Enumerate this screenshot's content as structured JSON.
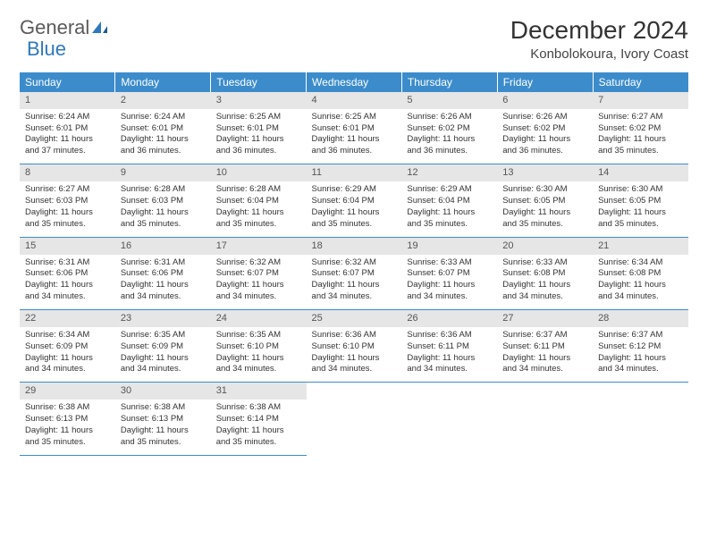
{
  "brand": {
    "part1": "General",
    "part2": "Blue"
  },
  "title": "December 2024",
  "location": "Konbolokoura, Ivory Coast",
  "colors": {
    "header_bg": "#3c8ccc",
    "header_text": "#ffffff",
    "daynum_bg": "#e6e6e6",
    "border": "#3c8ccc",
    "brand_gray": "#5a5a5a",
    "brand_blue": "#2f78bd"
  },
  "day_headers": [
    "Sunday",
    "Monday",
    "Tuesday",
    "Wednesday",
    "Thursday",
    "Friday",
    "Saturday"
  ],
  "weeks": [
    [
      {
        "n": "1",
        "sr": "Sunrise: 6:24 AM",
        "ss": "Sunset: 6:01 PM",
        "d1": "Daylight: 11 hours",
        "d2": "and 37 minutes."
      },
      {
        "n": "2",
        "sr": "Sunrise: 6:24 AM",
        "ss": "Sunset: 6:01 PM",
        "d1": "Daylight: 11 hours",
        "d2": "and 36 minutes."
      },
      {
        "n": "3",
        "sr": "Sunrise: 6:25 AM",
        "ss": "Sunset: 6:01 PM",
        "d1": "Daylight: 11 hours",
        "d2": "and 36 minutes."
      },
      {
        "n": "4",
        "sr": "Sunrise: 6:25 AM",
        "ss": "Sunset: 6:01 PM",
        "d1": "Daylight: 11 hours",
        "d2": "and 36 minutes."
      },
      {
        "n": "5",
        "sr": "Sunrise: 6:26 AM",
        "ss": "Sunset: 6:02 PM",
        "d1": "Daylight: 11 hours",
        "d2": "and 36 minutes."
      },
      {
        "n": "6",
        "sr": "Sunrise: 6:26 AM",
        "ss": "Sunset: 6:02 PM",
        "d1": "Daylight: 11 hours",
        "d2": "and 36 minutes."
      },
      {
        "n": "7",
        "sr": "Sunrise: 6:27 AM",
        "ss": "Sunset: 6:02 PM",
        "d1": "Daylight: 11 hours",
        "d2": "and 35 minutes."
      }
    ],
    [
      {
        "n": "8",
        "sr": "Sunrise: 6:27 AM",
        "ss": "Sunset: 6:03 PM",
        "d1": "Daylight: 11 hours",
        "d2": "and 35 minutes."
      },
      {
        "n": "9",
        "sr": "Sunrise: 6:28 AM",
        "ss": "Sunset: 6:03 PM",
        "d1": "Daylight: 11 hours",
        "d2": "and 35 minutes."
      },
      {
        "n": "10",
        "sr": "Sunrise: 6:28 AM",
        "ss": "Sunset: 6:04 PM",
        "d1": "Daylight: 11 hours",
        "d2": "and 35 minutes."
      },
      {
        "n": "11",
        "sr": "Sunrise: 6:29 AM",
        "ss": "Sunset: 6:04 PM",
        "d1": "Daylight: 11 hours",
        "d2": "and 35 minutes."
      },
      {
        "n": "12",
        "sr": "Sunrise: 6:29 AM",
        "ss": "Sunset: 6:04 PM",
        "d1": "Daylight: 11 hours",
        "d2": "and 35 minutes."
      },
      {
        "n": "13",
        "sr": "Sunrise: 6:30 AM",
        "ss": "Sunset: 6:05 PM",
        "d1": "Daylight: 11 hours",
        "d2": "and 35 minutes."
      },
      {
        "n": "14",
        "sr": "Sunrise: 6:30 AM",
        "ss": "Sunset: 6:05 PM",
        "d1": "Daylight: 11 hours",
        "d2": "and 35 minutes."
      }
    ],
    [
      {
        "n": "15",
        "sr": "Sunrise: 6:31 AM",
        "ss": "Sunset: 6:06 PM",
        "d1": "Daylight: 11 hours",
        "d2": "and 34 minutes."
      },
      {
        "n": "16",
        "sr": "Sunrise: 6:31 AM",
        "ss": "Sunset: 6:06 PM",
        "d1": "Daylight: 11 hours",
        "d2": "and 34 minutes."
      },
      {
        "n": "17",
        "sr": "Sunrise: 6:32 AM",
        "ss": "Sunset: 6:07 PM",
        "d1": "Daylight: 11 hours",
        "d2": "and 34 minutes."
      },
      {
        "n": "18",
        "sr": "Sunrise: 6:32 AM",
        "ss": "Sunset: 6:07 PM",
        "d1": "Daylight: 11 hours",
        "d2": "and 34 minutes."
      },
      {
        "n": "19",
        "sr": "Sunrise: 6:33 AM",
        "ss": "Sunset: 6:07 PM",
        "d1": "Daylight: 11 hours",
        "d2": "and 34 minutes."
      },
      {
        "n": "20",
        "sr": "Sunrise: 6:33 AM",
        "ss": "Sunset: 6:08 PM",
        "d1": "Daylight: 11 hours",
        "d2": "and 34 minutes."
      },
      {
        "n": "21",
        "sr": "Sunrise: 6:34 AM",
        "ss": "Sunset: 6:08 PM",
        "d1": "Daylight: 11 hours",
        "d2": "and 34 minutes."
      }
    ],
    [
      {
        "n": "22",
        "sr": "Sunrise: 6:34 AM",
        "ss": "Sunset: 6:09 PM",
        "d1": "Daylight: 11 hours",
        "d2": "and 34 minutes."
      },
      {
        "n": "23",
        "sr": "Sunrise: 6:35 AM",
        "ss": "Sunset: 6:09 PM",
        "d1": "Daylight: 11 hours",
        "d2": "and 34 minutes."
      },
      {
        "n": "24",
        "sr": "Sunrise: 6:35 AM",
        "ss": "Sunset: 6:10 PM",
        "d1": "Daylight: 11 hours",
        "d2": "and 34 minutes."
      },
      {
        "n": "25",
        "sr": "Sunrise: 6:36 AM",
        "ss": "Sunset: 6:10 PM",
        "d1": "Daylight: 11 hours",
        "d2": "and 34 minutes."
      },
      {
        "n": "26",
        "sr": "Sunrise: 6:36 AM",
        "ss": "Sunset: 6:11 PM",
        "d1": "Daylight: 11 hours",
        "d2": "and 34 minutes."
      },
      {
        "n": "27",
        "sr": "Sunrise: 6:37 AM",
        "ss": "Sunset: 6:11 PM",
        "d1": "Daylight: 11 hours",
        "d2": "and 34 minutes."
      },
      {
        "n": "28",
        "sr": "Sunrise: 6:37 AM",
        "ss": "Sunset: 6:12 PM",
        "d1": "Daylight: 11 hours",
        "d2": "and 34 minutes."
      }
    ],
    [
      {
        "n": "29",
        "sr": "Sunrise: 6:38 AM",
        "ss": "Sunset: 6:13 PM",
        "d1": "Daylight: 11 hours",
        "d2": "and 35 minutes."
      },
      {
        "n": "30",
        "sr": "Sunrise: 6:38 AM",
        "ss": "Sunset: 6:13 PM",
        "d1": "Daylight: 11 hours",
        "d2": "and 35 minutes."
      },
      {
        "n": "31",
        "sr": "Sunrise: 6:38 AM",
        "ss": "Sunset: 6:14 PM",
        "d1": "Daylight: 11 hours",
        "d2": "and 35 minutes."
      },
      null,
      null,
      null,
      null
    ]
  ]
}
